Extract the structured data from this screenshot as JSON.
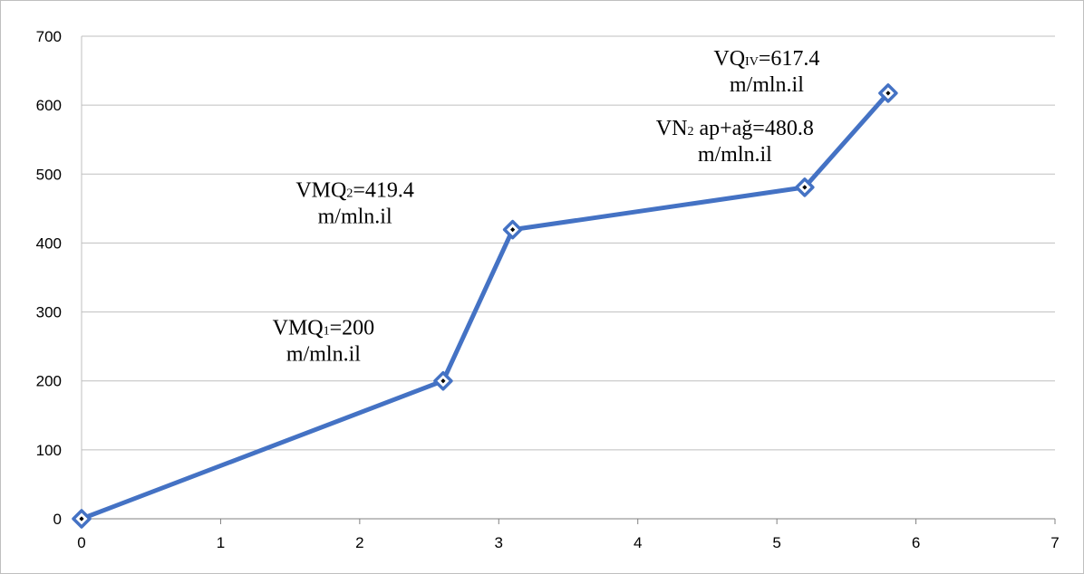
{
  "chart_data": {
    "type": "line",
    "title": "",
    "xlabel": "",
    "ylabel": "",
    "xlim": [
      0,
      7
    ],
    "ylim": [
      0,
      700
    ],
    "x_ticks": [
      "0",
      "1",
      "2",
      "3",
      "4",
      "5",
      "6",
      "7"
    ],
    "y_ticks": [
      "0",
      "100",
      "200",
      "300",
      "400",
      "500",
      "600",
      "700"
    ],
    "grid": "horizontal",
    "legend": "none",
    "series": [
      {
        "x": [
          0,
          2.6,
          3.1,
          5.2,
          5.8
        ],
        "y": [
          0,
          200,
          419.4,
          480.8,
          617.4
        ],
        "color": "#4472c4",
        "marker": "diamond"
      }
    ],
    "annotations": [
      {
        "pre": "VMQ",
        "sub": "1",
        "post": "=200",
        "line2": "m/mln.il",
        "x": 2.6,
        "y": 200
      },
      {
        "pre": "VMQ",
        "sub": "2",
        "post": "=419.4",
        "line2": "m/mln.il",
        "x": 3.1,
        "y": 419.4
      },
      {
        "pre": "VN",
        "sub": "2",
        "post": " ap+ağ=480.8",
        "line2": "m/mln.il",
        "x": 5.2,
        "y": 480.8
      },
      {
        "pre": "VQ",
        "sub": "IV",
        "post": "=617.4",
        "line2": "m/mln.il",
        "x": 5.8,
        "y": 617.4
      }
    ]
  }
}
